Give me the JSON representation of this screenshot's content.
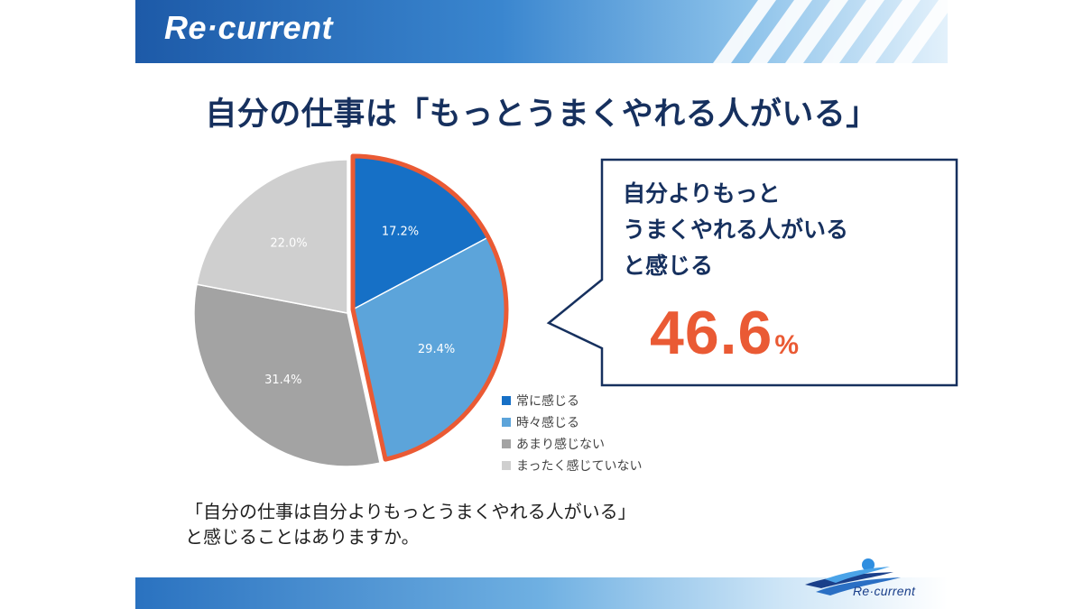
{
  "brand": {
    "name": "Re·current",
    "footer_name": "Re·current"
  },
  "colors": {
    "navy": "#16305e",
    "accent_orange": "#ea5a34",
    "series_always": "#1670c6",
    "series_sometimes": "#5ca4da",
    "series_rarely": "#a3a3a3",
    "series_never": "#cfcfcf"
  },
  "chart_data": {
    "type": "pie",
    "title": "自分の仕事は「もっとうまくやれる人がいる」",
    "unit": "%",
    "slices": [
      {
        "label": "常に感じる",
        "value": 17.2,
        "display": "17.2%",
        "color": "#1670c6",
        "highlighted": true
      },
      {
        "label": "時々感じる",
        "value": 29.4,
        "display": "29.4%",
        "color": "#5ca4da",
        "highlighted": true
      },
      {
        "label": "あまり感じない",
        "value": 31.4,
        "display": "31.4%",
        "color": "#a3a3a3",
        "highlighted": false
      },
      {
        "label": "まったく感じていない",
        "value": 22.0,
        "display": "22.0%",
        "color": "#cfcfcf",
        "highlighted": false
      }
    ],
    "legend_position": "bottom-right",
    "highlight_outline_color": "#ea5a34"
  },
  "callout": {
    "lines": [
      "自分よりもっと",
      "うまくやれる人がいる",
      "と感じる"
    ],
    "value": "46.6",
    "unit": "%"
  },
  "question": {
    "lines": [
      "「自分の仕事は自分よりもっとうまくやれる人がいる」",
      "と感じることはありますか。"
    ]
  }
}
